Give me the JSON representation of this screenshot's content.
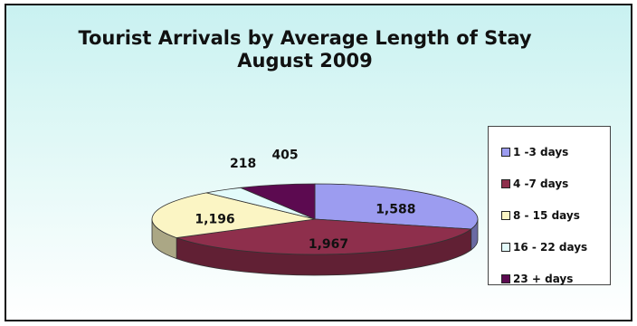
{
  "chart_data": {
    "type": "pie",
    "title": "Tourist Arrivals by Average Length of Stay",
    "subtitle": "August 2009",
    "categories": [
      "1 -3 days",
      "4 -7 days",
      "8 - 15 days",
      "16 - 22 days",
      "23 + days"
    ],
    "values": [
      1588,
      1967,
      1196,
      218,
      405
    ],
    "value_labels": [
      "1,588",
      "1,967",
      "1,196",
      "218",
      "405"
    ],
    "colors": [
      "#9c9cf0",
      "#8e2f4c",
      "#fbf5c4",
      "#e3fbfb",
      "#5c0a50"
    ],
    "legend_position": "right",
    "style": "3d"
  }
}
